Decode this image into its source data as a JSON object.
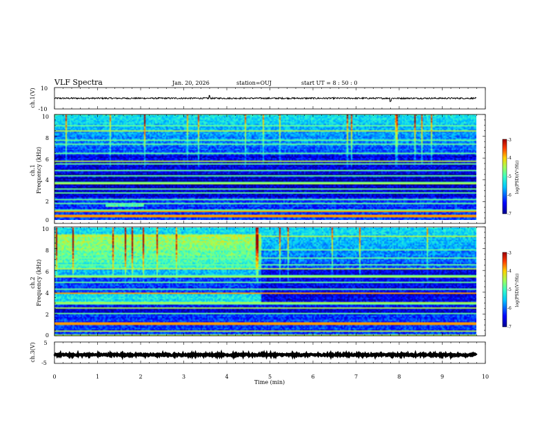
{
  "header": {
    "title": "VLF Spectra",
    "date": "Jan. 20, 2026",
    "station": "station=OUJ",
    "start": "start  UT =  8 : 50 : 0"
  },
  "chart_data": {
    "type": "heatmap",
    "title": "VLF Spectra",
    "xlabel": "Time  (min)",
    "xlim": [
      0,
      10
    ],
    "x_ticks": [
      "0",
      "1",
      "2",
      "3",
      "4",
      "5",
      "6",
      "7",
      "8",
      "9",
      "10"
    ],
    "panels": [
      {
        "name": "ch.1 waveform",
        "ylabel": "ch.1(V)",
        "ylim": [
          -10,
          10
        ],
        "y_ticks": [
          "10",
          "-10"
        ],
        "level": 0,
        "noise": 0.7,
        "spikes": [
          {
            "t": 3.6,
            "v": 2.5
          },
          {
            "t": 7.8,
            "v": -2.5
          }
        ]
      },
      {
        "name": "ch.1 spectrogram",
        "ylabel_top": "ch.1",
        "ylabel": "Frequency  (kHz)",
        "ylim": [
          0,
          10
        ],
        "y_ticks": [
          "0",
          "2",
          "4",
          "6",
          "8",
          "10"
        ],
        "data_end_min": 9.8,
        "colorbar_label": "log(PSD)(V²/Hz)",
        "colorbar_range": [
          -7,
          -3
        ],
        "colorbar_ticks": [
          "-3",
          "-4",
          "-5",
          "-6",
          "-7"
        ],
        "lines_khz": [
          0.4,
          1.0,
          1.6,
          2.0,
          2.6,
          3.0,
          3.3,
          3.6,
          4.2,
          4.8,
          5.4,
          6.4,
          7.2,
          7.6,
          9.0
        ],
        "strong_lines_khz": [
          0.45,
          0.9
        ]
      },
      {
        "name": "ch.2 spectrogram",
        "ylabel_top": "ch.2",
        "ylabel": "Frequency  (kHz)",
        "ylim": [
          0,
          10
        ],
        "y_ticks": [
          "0",
          "2",
          "4",
          "6",
          "8",
          "10"
        ],
        "data_end_min": 9.8,
        "colorbar_label": "log(PSD)(V²/Hz)",
        "colorbar_range": [
          -7,
          -3
        ],
        "colorbar_ticks": [
          "-3",
          "-4",
          "-5",
          "-6",
          "-7"
        ],
        "lines_khz": [
          0.8,
          1.3,
          2.1,
          2.6,
          3.0,
          4.0,
          4.4,
          5.0,
          5.6,
          6.6,
          7.2,
          8.0
        ],
        "strong_lines_khz": [
          1.2,
          4.0
        ],
        "bright_region_end_min": 4.8
      },
      {
        "name": "ch.3 waveform",
        "ylabel": "ch.3(V)",
        "ylim": [
          -5,
          5
        ],
        "y_ticks": [
          "5",
          "-5"
        ],
        "level": -1,
        "noise": 0.4,
        "spikes": []
      }
    ]
  }
}
